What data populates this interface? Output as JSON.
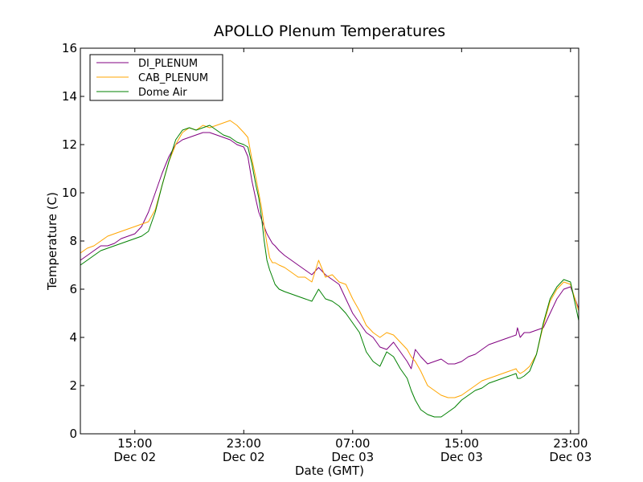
{
  "chart_data": {
    "type": "line",
    "title": "APOLLO Plenum Temperatures",
    "xlabel": "Date (GMT)",
    "ylabel": "Temperature (C)",
    "x_unit": "hours since Dec 02 00:00 GMT",
    "xlim": [
      11.0,
      47.6
    ],
    "ylim": [
      0,
      16
    ],
    "grid": false,
    "legend_position": "top-left",
    "x_ticks": [
      {
        "value": 15,
        "time": "15:00",
        "date": "Dec 02"
      },
      {
        "value": 23,
        "time": "23:00",
        "date": "Dec 02"
      },
      {
        "value": 31,
        "time": "07:00",
        "date": "Dec 03"
      },
      {
        "value": 39,
        "time": "15:00",
        "date": "Dec 03"
      },
      {
        "value": 47,
        "time": "23:00",
        "date": "Dec 03"
      }
    ],
    "y_ticks": [
      0,
      2,
      4,
      6,
      8,
      10,
      12,
      14,
      16
    ],
    "series": [
      {
        "name": "DI_PLENUM",
        "color": "#800080",
        "x": [
          11.0,
          11.5,
          12.0,
          12.5,
          13.0,
          13.5,
          14.0,
          14.5,
          15.0,
          15.5,
          16.0,
          16.5,
          17.0,
          17.5,
          18.0,
          18.5,
          19.0,
          19.5,
          20.0,
          20.5,
          21.0,
          21.5,
          22.0,
          22.5,
          23.0,
          23.3,
          23.6,
          23.9,
          24.1,
          24.3,
          24.5,
          24.7,
          24.9,
          25.1,
          25.3,
          25.6,
          26.0,
          26.5,
          27.0,
          27.5,
          28.0,
          28.5,
          29.0,
          29.5,
          30.0,
          30.5,
          31.0,
          31.5,
          32.0,
          32.5,
          33.0,
          33.5,
          34.0,
          34.5,
          35.0,
          35.3,
          35.6,
          36.0,
          36.5,
          37.0,
          37.5,
          38.0,
          38.5,
          39.0,
          39.5,
          40.0,
          40.5,
          41.0,
          41.5,
          42.0,
          42.5,
          43.0,
          43.1,
          43.3,
          43.6,
          44.0,
          44.5,
          45.0,
          45.5,
          46.0,
          46.5,
          47.0,
          47.6
        ],
        "values": [
          7.2,
          7.4,
          7.6,
          7.8,
          7.8,
          7.9,
          8.1,
          8.2,
          8.3,
          8.6,
          9.2,
          10.0,
          10.8,
          11.5,
          12.0,
          12.2,
          12.3,
          12.4,
          12.5,
          12.5,
          12.4,
          12.3,
          12.2,
          12.0,
          11.9,
          11.5,
          10.5,
          9.7,
          9.2,
          8.9,
          8.6,
          8.3,
          8.1,
          7.9,
          7.8,
          7.6,
          7.4,
          7.2,
          7.0,
          6.8,
          6.6,
          6.9,
          6.6,
          6.4,
          6.2,
          5.6,
          5.0,
          4.6,
          4.2,
          4.0,
          3.6,
          3.5,
          3.8,
          3.4,
          3.0,
          2.7,
          3.5,
          3.2,
          2.9,
          3.0,
          3.1,
          2.9,
          2.9,
          3.0,
          3.2,
          3.3,
          3.5,
          3.7,
          3.8,
          3.9,
          4.0,
          4.1,
          4.4,
          4.0,
          4.2,
          4.2,
          4.3,
          4.4,
          5.0,
          5.6,
          6.0,
          6.1,
          5.2
        ]
      },
      {
        "name": "CAB_PLENUM",
        "color": "#ffa500",
        "x": [
          11.0,
          11.5,
          12.0,
          12.5,
          13.0,
          13.5,
          14.0,
          14.5,
          15.0,
          15.5,
          16.0,
          16.5,
          17.0,
          17.5,
          18.0,
          18.5,
          19.0,
          19.5,
          20.0,
          20.5,
          21.0,
          21.5,
          22.0,
          22.5,
          23.0,
          23.3,
          23.6,
          23.9,
          24.1,
          24.3,
          24.5,
          24.7,
          24.9,
          25.1,
          25.3,
          25.6,
          26.0,
          26.5,
          27.0,
          27.5,
          28.0,
          28.5,
          29.0,
          29.5,
          30.0,
          30.5,
          31.0,
          31.5,
          32.0,
          32.5,
          33.0,
          33.5,
          34.0,
          34.5,
          35.0,
          35.3,
          35.6,
          36.0,
          36.5,
          37.0,
          37.5,
          38.0,
          38.5,
          39.0,
          39.5,
          40.0,
          40.5,
          41.0,
          41.5,
          42.0,
          42.5,
          43.0,
          43.1,
          43.3,
          43.6,
          44.0,
          44.5,
          45.0,
          45.5,
          46.0,
          46.5,
          47.0,
          47.6
        ],
        "values": [
          7.5,
          7.7,
          7.8,
          8.0,
          8.2,
          8.3,
          8.4,
          8.5,
          8.6,
          8.7,
          8.8,
          9.3,
          10.3,
          11.3,
          12.0,
          12.5,
          12.7,
          12.6,
          12.8,
          12.7,
          12.8,
          12.9,
          13.0,
          12.8,
          12.5,
          12.3,
          11.4,
          10.6,
          10.0,
          9.4,
          8.6,
          7.9,
          7.3,
          7.1,
          7.1,
          7.0,
          6.9,
          6.7,
          6.5,
          6.5,
          6.3,
          7.2,
          6.5,
          6.6,
          6.3,
          6.2,
          5.6,
          5.1,
          4.5,
          4.2,
          4.0,
          4.2,
          4.1,
          3.8,
          3.5,
          3.2,
          3.0,
          2.6,
          2.0,
          1.8,
          1.6,
          1.5,
          1.5,
          1.6,
          1.8,
          2.0,
          2.2,
          2.3,
          2.4,
          2.5,
          2.6,
          2.7,
          2.6,
          2.5,
          2.6,
          2.8,
          3.3,
          4.5,
          5.5,
          6.0,
          6.3,
          6.2,
          5.1
        ]
      },
      {
        "name": "Dome Air",
        "color": "#008000",
        "x": [
          11.0,
          11.5,
          12.0,
          12.5,
          13.0,
          13.5,
          14.0,
          14.5,
          15.0,
          15.5,
          16.0,
          16.5,
          17.0,
          17.5,
          18.0,
          18.5,
          19.0,
          19.5,
          20.0,
          20.5,
          21.0,
          21.5,
          22.0,
          22.5,
          23.0,
          23.3,
          23.6,
          23.9,
          24.1,
          24.3,
          24.5,
          24.7,
          24.9,
          25.1,
          25.3,
          25.6,
          26.0,
          26.5,
          27.0,
          27.5,
          28.0,
          28.5,
          29.0,
          29.5,
          30.0,
          30.5,
          31.0,
          31.5,
          32.0,
          32.5,
          33.0,
          33.5,
          34.0,
          34.5,
          35.0,
          35.3,
          35.6,
          36.0,
          36.5,
          37.0,
          37.5,
          38.0,
          38.5,
          39.0,
          39.5,
          40.0,
          40.5,
          41.0,
          41.5,
          42.0,
          42.5,
          43.0,
          43.1,
          43.3,
          43.6,
          44.0,
          44.5,
          45.0,
          45.5,
          46.0,
          46.5,
          47.0,
          47.6
        ],
        "values": [
          7.0,
          7.2,
          7.4,
          7.6,
          7.7,
          7.8,
          7.9,
          8.0,
          8.1,
          8.2,
          8.4,
          9.2,
          10.3,
          11.3,
          12.2,
          12.6,
          12.7,
          12.6,
          12.7,
          12.8,
          12.6,
          12.4,
          12.3,
          12.1,
          12.0,
          11.9,
          11.2,
          10.3,
          9.8,
          9.0,
          8.0,
          7.2,
          6.8,
          6.5,
          6.2,
          6.0,
          5.9,
          5.8,
          5.7,
          5.6,
          5.5,
          6.0,
          5.6,
          5.5,
          5.3,
          5.0,
          4.6,
          4.2,
          3.4,
          3.0,
          2.8,
          3.4,
          3.2,
          2.7,
          2.3,
          1.8,
          1.4,
          1.0,
          0.8,
          0.7,
          0.7,
          0.9,
          1.1,
          1.4,
          1.6,
          1.8,
          1.9,
          2.1,
          2.2,
          2.3,
          2.4,
          2.5,
          2.3,
          2.3,
          2.4,
          2.6,
          3.3,
          4.6,
          5.6,
          6.1,
          6.4,
          6.3,
          4.7
        ]
      }
    ]
  }
}
